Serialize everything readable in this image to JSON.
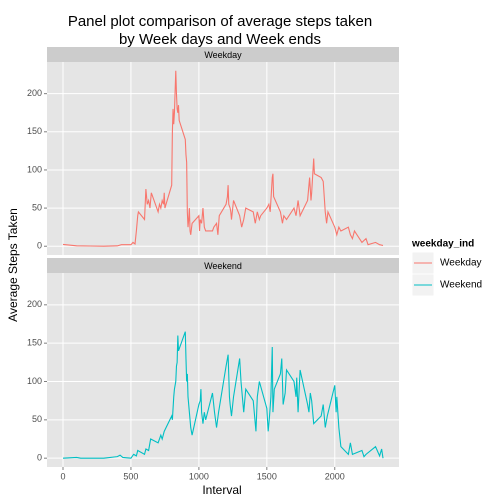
{
  "chart_data": {
    "type": "line",
    "title": [
      "Panel plot comparison of average steps taken",
      "by Week days and Week ends"
    ],
    "xlabel": "Interval",
    "ylabel": "Average Steps Taken",
    "legend_title": "weekday_ind",
    "xlim": [
      -117.75,
      2472.75
    ],
    "xticks": [
      0,
      500,
      1000,
      1500,
      2000
    ],
    "ylim": [
      -11.5,
      241.5
    ],
    "yticks": [
      0,
      50,
      100,
      150,
      200
    ],
    "grid": true,
    "legend": "right",
    "series": [
      {
        "name": "Weekday",
        "color": "#F8766D",
        "x": [
          0,
          100,
          200,
          300,
          400,
          430,
          500,
          515,
          530,
          540,
          550,
          555,
          600,
          605,
          610,
          620,
          630,
          640,
          650,
          700,
          710,
          720,
          730,
          740,
          745,
          750,
          800,
          805,
          810,
          815,
          820,
          830,
          835,
          840,
          845,
          850,
          855,
          900,
          905,
          910,
          915,
          920,
          925,
          930,
          935,
          940,
          950,
          1000,
          1005,
          1010,
          1020,
          1030,
          1040,
          1050,
          1100,
          1110,
          1130,
          1140,
          1150,
          1200,
          1210,
          1215,
          1220,
          1230,
          1235,
          1240,
          1255,
          1300,
          1315,
          1330,
          1345,
          1400,
          1415,
          1430,
          1445,
          1455,
          1500,
          1515,
          1525,
          1540,
          1545,
          1550,
          1600,
          1615,
          1625,
          1645,
          1700,
          1715,
          1730,
          1745,
          1800,
          1815,
          1825,
          1830,
          1845,
          1850,
          1900,
          1915,
          1930,
          1940,
          1950,
          2000,
          2015,
          2030,
          2045,
          2100,
          2115,
          2130,
          2145,
          2200,
          2230,
          2245,
          2300,
          2330,
          2355
        ],
        "values": [
          2.3,
          0.5,
          0.3,
          0,
          0.5,
          2,
          2,
          5,
          3,
          20,
          40,
          45,
          35,
          55,
          75,
          55,
          60,
          50,
          70,
          45,
          55,
          50,
          60,
          55,
          70,
          50,
          80,
          150,
          180,
          160,
          175,
          230,
          200,
          180,
          175,
          185,
          165,
          140,
          120,
          110,
          45,
          25,
          35,
          50,
          20,
          15,
          30,
          40,
          20,
          35,
          30,
          50,
          25,
          20,
          20,
          25,
          30,
          15,
          40,
          55,
          65,
          80,
          55,
          50,
          45,
          35,
          60,
          40,
          25,
          35,
          50,
          45,
          30,
          45,
          35,
          40,
          50,
          55,
          45,
          90,
          95,
          65,
          45,
          30,
          40,
          35,
          50,
          40,
          60,
          40,
          60,
          90,
          60,
          70,
          115,
          95,
          90,
          85,
          45,
          30,
          45,
          25,
          15,
          25,
          20,
          25,
          15,
          10,
          20,
          5,
          10,
          2,
          5,
          2,
          1
        ]
      },
      {
        "name": "Weekend",
        "color": "#00BFC4",
        "x": [
          0,
          100,
          130,
          200,
          300,
          400,
          420,
          440,
          500,
          520,
          540,
          550,
          600,
          610,
          630,
          645,
          700,
          720,
          730,
          745,
          800,
          805,
          815,
          820,
          830,
          835,
          840,
          845,
          850,
          900,
          905,
          910,
          915,
          920,
          930,
          940,
          950,
          1000,
          1010,
          1015,
          1020,
          1030,
          1040,
          1050,
          1100,
          1115,
          1130,
          1145,
          1200,
          1215,
          1225,
          1230,
          1240,
          1255,
          1300,
          1310,
          1330,
          1345,
          1400,
          1410,
          1420,
          1430,
          1445,
          1500,
          1510,
          1520,
          1530,
          1540,
          1545,
          1555,
          1600,
          1610,
          1620,
          1635,
          1645,
          1700,
          1715,
          1720,
          1730,
          1745,
          1800,
          1810,
          1820,
          1830,
          1845,
          1900,
          1915,
          1930,
          1945,
          2000,
          2010,
          2015,
          2030,
          2045,
          2100,
          2115,
          2130,
          2200,
          2215,
          2230,
          2300,
          2330,
          2345,
          2355
        ],
        "values": [
          0,
          1,
          0,
          0,
          0,
          2,
          4,
          1,
          0,
          5,
          3,
          10,
          5,
          12,
          10,
          25,
          20,
          30,
          25,
          35,
          55,
          50,
          80,
          90,
          100,
          120,
          125,
          160,
          140,
          165,
          130,
          100,
          110,
          80,
          60,
          40,
          30,
          70,
          75,
          90,
          60,
          45,
          60,
          50,
          85,
          60,
          40,
          60,
          120,
          135,
          80,
          70,
          55,
          80,
          130,
          100,
          60,
          90,
          75,
          55,
          35,
          80,
          100,
          65,
          35,
          55,
          80,
          145,
          60,
          90,
          110,
          130,
          70,
          85,
          115,
          100,
          80,
          105,
          60,
          115,
          70,
          60,
          85,
          75,
          45,
          55,
          70,
          40,
          55,
          95,
          60,
          80,
          40,
          15,
          5,
          20,
          5,
          10,
          2,
          5,
          15,
          3,
          12,
          0
        ]
      }
    ]
  }
}
